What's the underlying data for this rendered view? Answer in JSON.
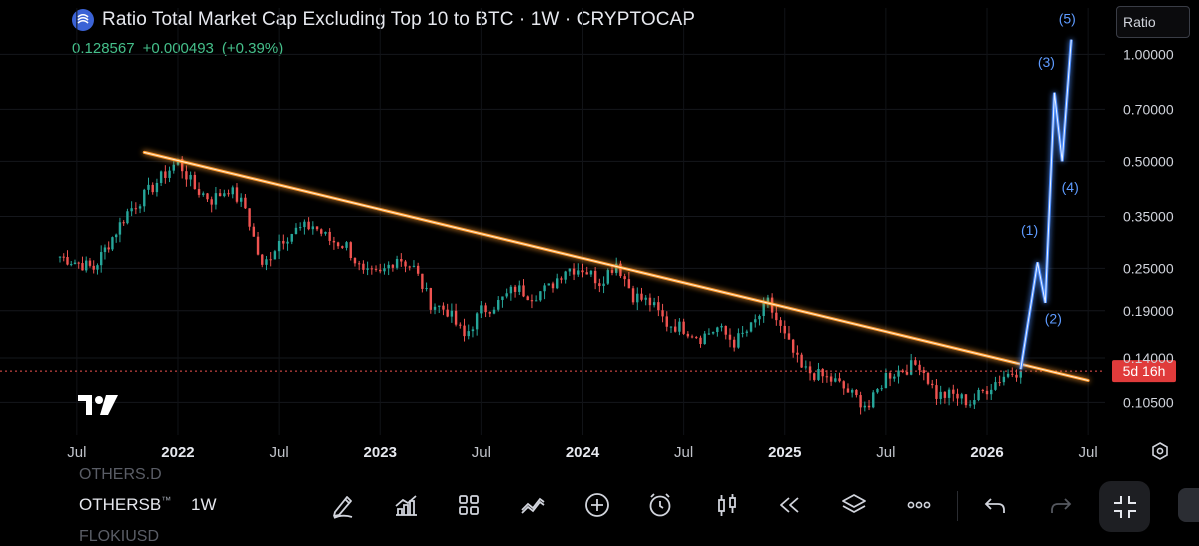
{
  "header": {
    "title": "Ratio Total Market Cap Excluding Top 10 to BTC · 1W · CRYPTOCAP",
    "price": "0.128567",
    "change": "+0.000493",
    "change_pct": "(+0.39%)",
    "scale_button": "Ratio"
  },
  "chart_data": {
    "type": "candlestick",
    "y_scale": "log",
    "y_ticks": [
      "1.00000",
      "0.70000",
      "0.50000",
      "0.35000",
      "0.25000",
      "0.19000",
      "0.14000",
      "0.10500"
    ],
    "y_tick_values": [
      1.0,
      0.7,
      0.5,
      0.35,
      0.25,
      0.19,
      0.14,
      0.105
    ],
    "x_ticks": [
      "Jul",
      "2022",
      "Jul",
      "2023",
      "Jul",
      "2024",
      "Jul",
      "2025",
      "Jul",
      "2026",
      "Jul"
    ],
    "x_tick_values": [
      "2021-07",
      "2022-01",
      "2022-07",
      "2023-01",
      "2023-07",
      "2024-01",
      "2024-07",
      "2025-01",
      "2025-07",
      "2026-01",
      "2026-07"
    ],
    "x_range": [
      "2021-06",
      "2026-08"
    ],
    "y_range": [
      0.085,
      1.35
    ],
    "current_price": 0.128567,
    "countdown_label": "5d 16h",
    "close_path": [
      [
        "2021-06",
        0.27
      ],
      [
        "2021-08",
        0.25
      ],
      [
        "2021-10",
        0.36
      ],
      [
        "2021-11",
        0.4
      ],
      [
        "2021-12",
        0.45
      ],
      [
        "2022-01",
        0.5
      ],
      [
        "2022-02",
        0.42
      ],
      [
        "2022-03",
        0.39
      ],
      [
        "2022-04",
        0.42
      ],
      [
        "2022-05",
        0.37
      ],
      [
        "2022-06",
        0.25
      ],
      [
        "2022-07",
        0.3
      ],
      [
        "2022-08",
        0.32
      ],
      [
        "2022-09",
        0.33
      ],
      [
        "2022-10",
        0.3
      ],
      [
        "2022-11",
        0.29
      ],
      [
        "2022-12",
        0.24
      ],
      [
        "2023-01",
        0.24
      ],
      [
        "2023-02",
        0.27
      ],
      [
        "2023-03",
        0.25
      ],
      [
        "2023-04",
        0.2
      ],
      [
        "2023-05",
        0.19
      ],
      [
        "2023-06",
        0.16
      ],
      [
        "2023-07",
        0.19
      ],
      [
        "2023-08",
        0.2
      ],
      [
        "2023-09",
        0.22
      ],
      [
        "2023-10",
        0.21
      ],
      [
        "2023-11",
        0.22
      ],
      [
        "2023-12",
        0.25
      ],
      [
        "2024-01",
        0.25
      ],
      [
        "2024-02",
        0.23
      ],
      [
        "2024-03",
        0.26
      ],
      [
        "2024-04",
        0.21
      ],
      [
        "2024-05",
        0.2
      ],
      [
        "2024-06",
        0.175
      ],
      [
        "2024-07",
        0.17
      ],
      [
        "2024-08",
        0.16
      ],
      [
        "2024-09",
        0.17
      ],
      [
        "2024-10",
        0.155
      ],
      [
        "2024-11",
        0.17
      ],
      [
        "2024-12",
        0.2
      ],
      [
        "2025-01",
        0.16
      ],
      [
        "2025-02",
        0.13
      ],
      [
        "2025-03",
        0.125
      ],
      [
        "2025-04",
        0.12
      ],
      [
        "2025-05",
        0.11
      ],
      [
        "2025-06",
        0.102
      ],
      [
        "2025-07",
        0.125
      ],
      [
        "2025-08",
        0.13
      ],
      [
        "2025-09",
        0.135
      ],
      [
        "2025-10",
        0.11
      ],
      [
        "2025-11",
        0.11
      ],
      [
        "2025-12",
        0.105
      ],
      [
        "2026-01",
        0.115
      ],
      [
        "2026-02",
        0.125
      ],
      [
        "2026-03",
        0.13
      ]
    ],
    "trendline": {
      "color": "#ff9a2e",
      "points": [
        [
          "2021-11",
          0.53
        ],
        [
          "2026-07",
          0.121
        ]
      ]
    },
    "projection": {
      "color": "#4b8dff",
      "points": [
        [
          "2026-03",
          0.13
        ],
        [
          "2026-04",
          0.26
        ],
        [
          "2026-04-15",
          0.2
        ],
        [
          "2026-05",
          0.78
        ],
        [
          "2026-05-15",
          0.5
        ],
        [
          "2026-06",
          1.1
        ]
      ],
      "wave_labels": [
        "(1)",
        "(2)",
        "(3)",
        "(4)",
        "(5)"
      ],
      "label_values": [
        0.31,
        0.175,
        0.92,
        0.41,
        1.22
      ]
    },
    "colors": {
      "up": "#26a69a",
      "down": "#ef5350",
      "price_line": "#ef5350"
    }
  },
  "bottom_bar": {
    "ghost_above": "OTHERS.D",
    "symbol": "OTHERSB",
    "symbol_badge": "™",
    "interval": "1W",
    "ghost_below": "FLOKIUSD",
    "tools": [
      {
        "name": "draw-tool-icon"
      },
      {
        "name": "indicators-icon"
      },
      {
        "name": "templates-icon"
      },
      {
        "name": "compare-icon"
      },
      {
        "name": "add-icon"
      },
      {
        "name": "alert-icon"
      },
      {
        "name": "chart-type-icon"
      },
      {
        "name": "replay-icon"
      },
      {
        "name": "layers-icon"
      },
      {
        "name": "more-icon"
      },
      {
        "name": "undo-icon"
      },
      {
        "name": "redo-icon"
      }
    ]
  },
  "logo": "TradingView"
}
